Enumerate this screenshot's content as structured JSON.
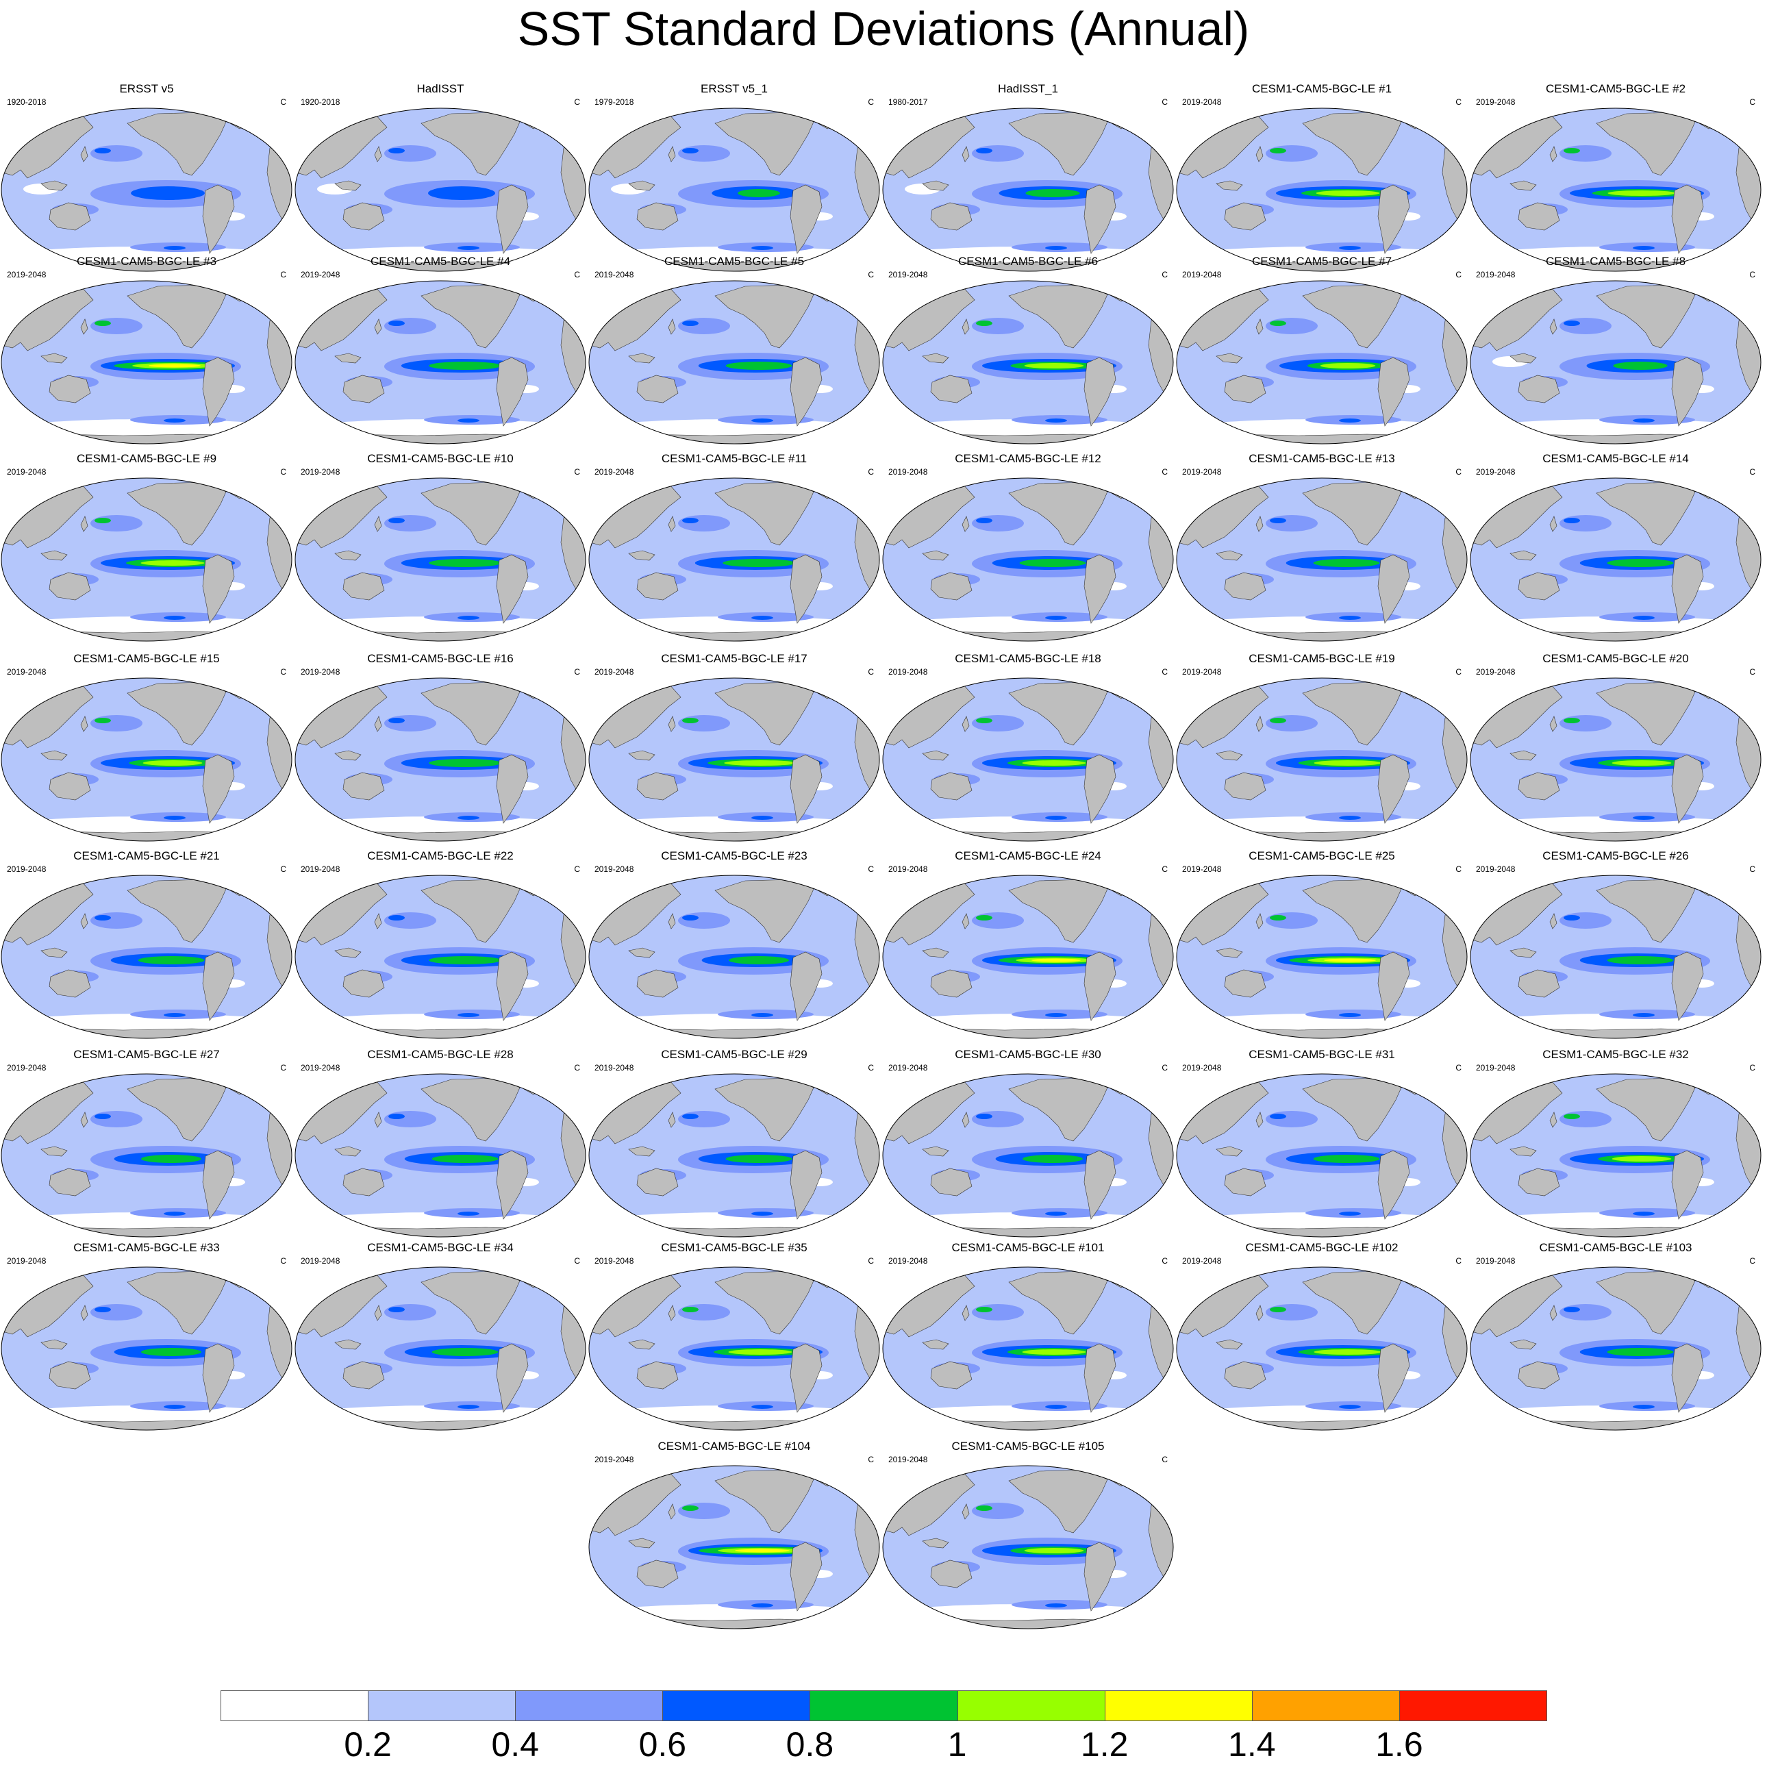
{
  "title": "SST Standard Deviations (Annual)",
  "units": "C",
  "colors": {
    "land": "#bebebe",
    "levels": [
      "#ffffff",
      "#b4c6fb",
      "#8099fb",
      "#0059ff",
      "#00c332",
      "#97ff00",
      "#ffff00",
      "#ffa100",
      "#ff1800"
    ]
  },
  "panels": [
    {
      "title": "ERSST v5",
      "period": "1920-2018",
      "amp": 0.25
    },
    {
      "title": "HadISST",
      "period": "1920-2018",
      "amp": 0.2
    },
    {
      "title": "ERSST v5_1",
      "period": "1979-2018",
      "amp": 0.35
    },
    {
      "title": "HadISST_1",
      "period": "1980-2017",
      "amp": 0.45
    },
    {
      "title": "CESM1-CAM5-BGC-LE #1",
      "period": "2019-2048",
      "amp": 0.75
    },
    {
      "title": "CESM1-CAM5-BGC-LE #2",
      "period": "2019-2048",
      "amp": 0.8
    },
    {
      "title": "CESM1-CAM5-BGC-LE #3",
      "period": "2019-2048",
      "amp": 0.95
    },
    {
      "title": "CESM1-CAM5-BGC-LE #4",
      "period": "2019-2048",
      "amp": 0.6
    },
    {
      "title": "CESM1-CAM5-BGC-LE #5",
      "period": "2019-2048",
      "amp": 0.55
    },
    {
      "title": "CESM1-CAM5-BGC-LE #6",
      "period": "2019-2048",
      "amp": 0.7
    },
    {
      "title": "CESM1-CAM5-BGC-LE #7",
      "period": "2019-2048",
      "amp": 0.65
    },
    {
      "title": "CESM1-CAM5-BGC-LE #8",
      "period": "2019-2048",
      "amp": 0.45
    },
    {
      "title": "CESM1-CAM5-BGC-LE #9",
      "period": "2019-2048",
      "amp": 0.75
    },
    {
      "title": "CESM1-CAM5-BGC-LE #10",
      "period": "2019-2048",
      "amp": 0.6
    },
    {
      "title": "CESM1-CAM5-BGC-LE #11",
      "period": "2019-2048",
      "amp": 0.6
    },
    {
      "title": "CESM1-CAM5-BGC-LE #12",
      "period": "2019-2048",
      "amp": 0.55
    },
    {
      "title": "CESM1-CAM5-BGC-LE #13",
      "period": "2019-2048",
      "amp": 0.55
    },
    {
      "title": "CESM1-CAM5-BGC-LE #14",
      "period": "2019-2048",
      "amp": 0.55
    },
    {
      "title": "CESM1-CAM5-BGC-LE #15",
      "period": "2019-2048",
      "amp": 0.7
    },
    {
      "title": "CESM1-CAM5-BGC-LE #16",
      "period": "2019-2048",
      "amp": 0.6
    },
    {
      "title": "CESM1-CAM5-BGC-LE #17",
      "period": "2019-2048",
      "amp": 0.85
    },
    {
      "title": "CESM1-CAM5-BGC-LE #18",
      "period": "2019-2048",
      "amp": 0.75
    },
    {
      "title": "CESM1-CAM5-BGC-LE #19",
      "period": "2019-2048",
      "amp": 0.8
    },
    {
      "title": "CESM1-CAM5-BGC-LE #20",
      "period": "2019-2048",
      "amp": 0.7
    },
    {
      "title": "CESM1-CAM5-BGC-LE #21",
      "period": "2019-2048",
      "amp": 0.55
    },
    {
      "title": "CESM1-CAM5-BGC-LE #22",
      "period": "2019-2048",
      "amp": 0.6
    },
    {
      "title": "CESM1-CAM5-BGC-LE #23",
      "period": "2019-2048",
      "amp": 0.5
    },
    {
      "title": "CESM1-CAM5-BGC-LE #24",
      "period": "2019-2048",
      "amp": 0.9
    },
    {
      "title": "CESM1-CAM5-BGC-LE #25",
      "period": "2019-2048",
      "amp": 0.95
    },
    {
      "title": "CESM1-CAM5-BGC-LE #26",
      "period": "2019-2048",
      "amp": 0.55
    },
    {
      "title": "CESM1-CAM5-BGC-LE #27",
      "period": "2019-2048",
      "amp": 0.5
    },
    {
      "title": "CESM1-CAM5-BGC-LE #28",
      "period": "2019-2048",
      "amp": 0.55
    },
    {
      "title": "CESM1-CAM5-BGC-LE #29",
      "period": "2019-2048",
      "amp": 0.55
    },
    {
      "title": "CESM1-CAM5-BGC-LE #30",
      "period": "2019-2048",
      "amp": 0.5
    },
    {
      "title": "CESM1-CAM5-BGC-LE #31",
      "period": "2019-2048",
      "amp": 0.55
    },
    {
      "title": "CESM1-CAM5-BGC-LE #32",
      "period": "2019-2048",
      "amp": 0.7
    },
    {
      "title": "CESM1-CAM5-BGC-LE #33",
      "period": "2019-2048",
      "amp": 0.5
    },
    {
      "title": "CESM1-CAM5-BGC-LE #34",
      "period": "2019-2048",
      "amp": 0.55
    },
    {
      "title": "CESM1-CAM5-BGC-LE #35",
      "period": "2019-2048",
      "amp": 0.75
    },
    {
      "title": "CESM1-CAM5-BGC-LE #101",
      "period": "2019-2048",
      "amp": 0.75
    },
    {
      "title": "CESM1-CAM5-BGC-LE #102",
      "period": "2019-2048",
      "amp": 0.8
    },
    {
      "title": "CESM1-CAM5-BGC-LE #103",
      "period": "2019-2048",
      "amp": 0.55
    },
    {
      "title": "CESM1-CAM5-BGC-LE #104",
      "period": "2019-2048",
      "amp": 1.0
    },
    {
      "title": "CESM1-CAM5-BGC-LE #105",
      "period": "2019-2048",
      "amp": 0.7
    }
  ],
  "colorbar": {
    "labels": [
      "0.2",
      "0.4",
      "0.6",
      "0.8",
      "1",
      "1.2",
      "1.4",
      "1.6"
    ]
  }
}
